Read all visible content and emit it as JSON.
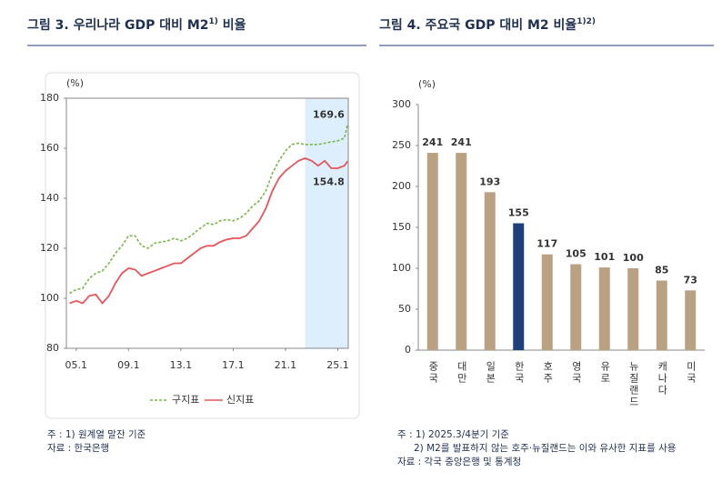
{
  "chart_data": [
    {
      "type": "line",
      "title": [
        "그림 3. 우리나라 GDP 대비 M2",
        "1)",
        " 비율"
      ],
      "y_unit": "(%)",
      "x": [
        2004.5,
        2005,
        2005.5,
        2006,
        2006.5,
        2007,
        2007.5,
        2008,
        2008.5,
        2009,
        2009.5,
        2010,
        2010.5,
        2011,
        2011.5,
        2012,
        2012.5,
        2013,
        2013.5,
        2014,
        2014.5,
        2015,
        2015.5,
        2016,
        2016.5,
        2017,
        2017.5,
        2018,
        2018.5,
        2019,
        2019.5,
        2020,
        2020.5,
        2021,
        2021.5,
        2022,
        2022.5,
        2023,
        2023.5,
        2024,
        2024.5,
        2025,
        2025.5,
        2025.75
      ],
      "series": [
        {
          "name": "구지표",
          "color": "#7ab648",
          "dashed": true,
          "values": [
            102,
            103.5,
            104,
            108,
            110,
            111,
            114,
            118,
            121,
            125,
            125,
            121,
            120,
            122,
            122.5,
            123,
            124,
            123,
            124,
            126,
            128,
            130,
            129.5,
            131,
            131.5,
            131,
            132,
            134,
            137,
            139,
            143,
            150,
            155,
            159,
            161.5,
            162,
            161.5,
            161.5,
            161.5,
            162,
            162.5,
            163,
            164,
            169.6
          ]
        },
        {
          "name": "신지표",
          "color": "#e8545a",
          "dashed": false,
          "values": [
            98,
            99,
            98,
            101,
            101.5,
            98,
            101,
            106,
            110,
            112,
            111.5,
            109,
            110,
            111,
            112,
            113,
            114,
            114,
            116,
            118,
            120,
            121,
            121,
            122.5,
            123.5,
            124,
            124,
            125,
            128,
            131,
            136,
            143,
            148,
            151,
            153,
            155,
            156,
            155,
            153,
            155,
            152,
            152,
            153,
            154.8
          ]
        }
      ],
      "xlim": [
        2004.25,
        2025.8
      ],
      "xticks": [
        {
          "value": 2005,
          "label": "05.1"
        },
        {
          "value": 2009,
          "label": "09.1"
        },
        {
          "value": 2013,
          "label": "13.1"
        },
        {
          "value": 2017,
          "label": "17.1"
        },
        {
          "value": 2021,
          "label": "21.1"
        },
        {
          "value": 2025,
          "label": "25.1"
        }
      ],
      "ylim": [
        80,
        180
      ],
      "yticks": [
        80,
        100,
        120,
        140,
        160,
        180
      ],
      "highlight_x": [
        2022.5,
        2025.8
      ],
      "highlight_color": "#ddeefc",
      "notes": [
        "주 : 1) 원계열 말잔 기준",
        "자료 : 한국은행"
      ]
    },
    {
      "type": "bar",
      "title": [
        "그림 4. 주요국 GDP 대비 M2 비율",
        "1)2)",
        ""
      ],
      "y_unit": "(%)",
      "categories": [
        "중국",
        "대만",
        "일본",
        "한국",
        "호주",
        "영국",
        "유로",
        "뉴질랜드",
        "캐나다",
        "미국"
      ],
      "values": [
        241,
        241,
        193,
        155,
        117,
        105,
        101,
        100,
        85,
        73
      ],
      "colors": [
        "#b9a182",
        "#b9a182",
        "#b9a182",
        "#1f3f7a",
        "#b9a182",
        "#b9a182",
        "#b9a182",
        "#b9a182",
        "#b9a182",
        "#b9a182"
      ],
      "label_colors": [
        "#8a6a3a",
        "#8a6a3a",
        "#8a6a3a",
        "#1f3f7a",
        "#8a6a3a",
        "#8a6a3a",
        "#8a6a3a",
        "#8a6a3a",
        "#8a6a3a",
        "#8a6a3a"
      ],
      "ylim": [
        0,
        300
      ],
      "yticks": [
        0,
        50,
        100,
        150,
        200,
        250,
        300
      ],
      "notes": [
        "주 : 1) 2025.3/4분기 기준",
        "2) M2를 발표하지 않는 호주·뉴질랜드는 이와 유사한 지표를 사용",
        "자료 : 각국 중앙은행 및 통계청"
      ]
    }
  ]
}
